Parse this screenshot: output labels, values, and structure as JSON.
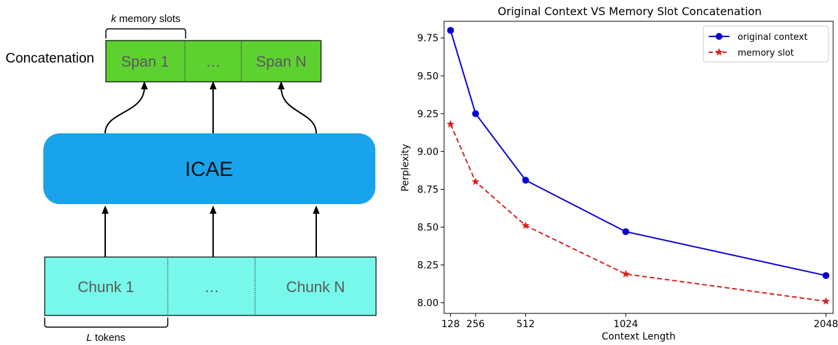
{
  "diagram": {
    "top_brace_label": {
      "italic": "k",
      "rest": " memory slots"
    },
    "row_label": "Concatenation",
    "spans": [
      "Span 1",
      "…",
      "Span N"
    ],
    "encoder_label": "ICAE",
    "chunks": [
      "Chunk 1",
      "…",
      "Chunk N"
    ],
    "bottom_brace_label": {
      "italic": "L",
      "rest": " tokens"
    },
    "colors": {
      "span_fill": "#5dd130",
      "encoder_fill": "#1aa3ed",
      "chunk_fill": "#77f8ea",
      "box_text": "#5a5a5a"
    }
  },
  "chart_data": {
    "type": "line",
    "title": "Original Context VS Memory Slot Concatenation",
    "xlabel": "Context Length",
    "ylabel": "Perplexity",
    "x": [
      128,
      256,
      512,
      1024,
      2048
    ],
    "xticks": [
      "128",
      "256",
      "512",
      "1024",
      "2048"
    ],
    "xlim": [
      95,
      2085
    ],
    "ylim": [
      7.93,
      9.86
    ],
    "yticks": [
      "8.00",
      "8.25",
      "8.50",
      "8.75",
      "9.00",
      "9.25",
      "9.50",
      "9.75"
    ],
    "grid": false,
    "legend_position": "top-right",
    "series": [
      {
        "name": "original context",
        "values": [
          9.8,
          9.25,
          8.81,
          8.47,
          8.18
        ],
        "color": "#0a00d4",
        "marker": "circle",
        "linestyle": "solid"
      },
      {
        "name": "memory slot",
        "values": [
          9.18,
          8.8,
          8.51,
          8.19,
          8.01
        ],
        "color": "#d62222",
        "marker": "star",
        "linestyle": "dashed"
      }
    ]
  }
}
